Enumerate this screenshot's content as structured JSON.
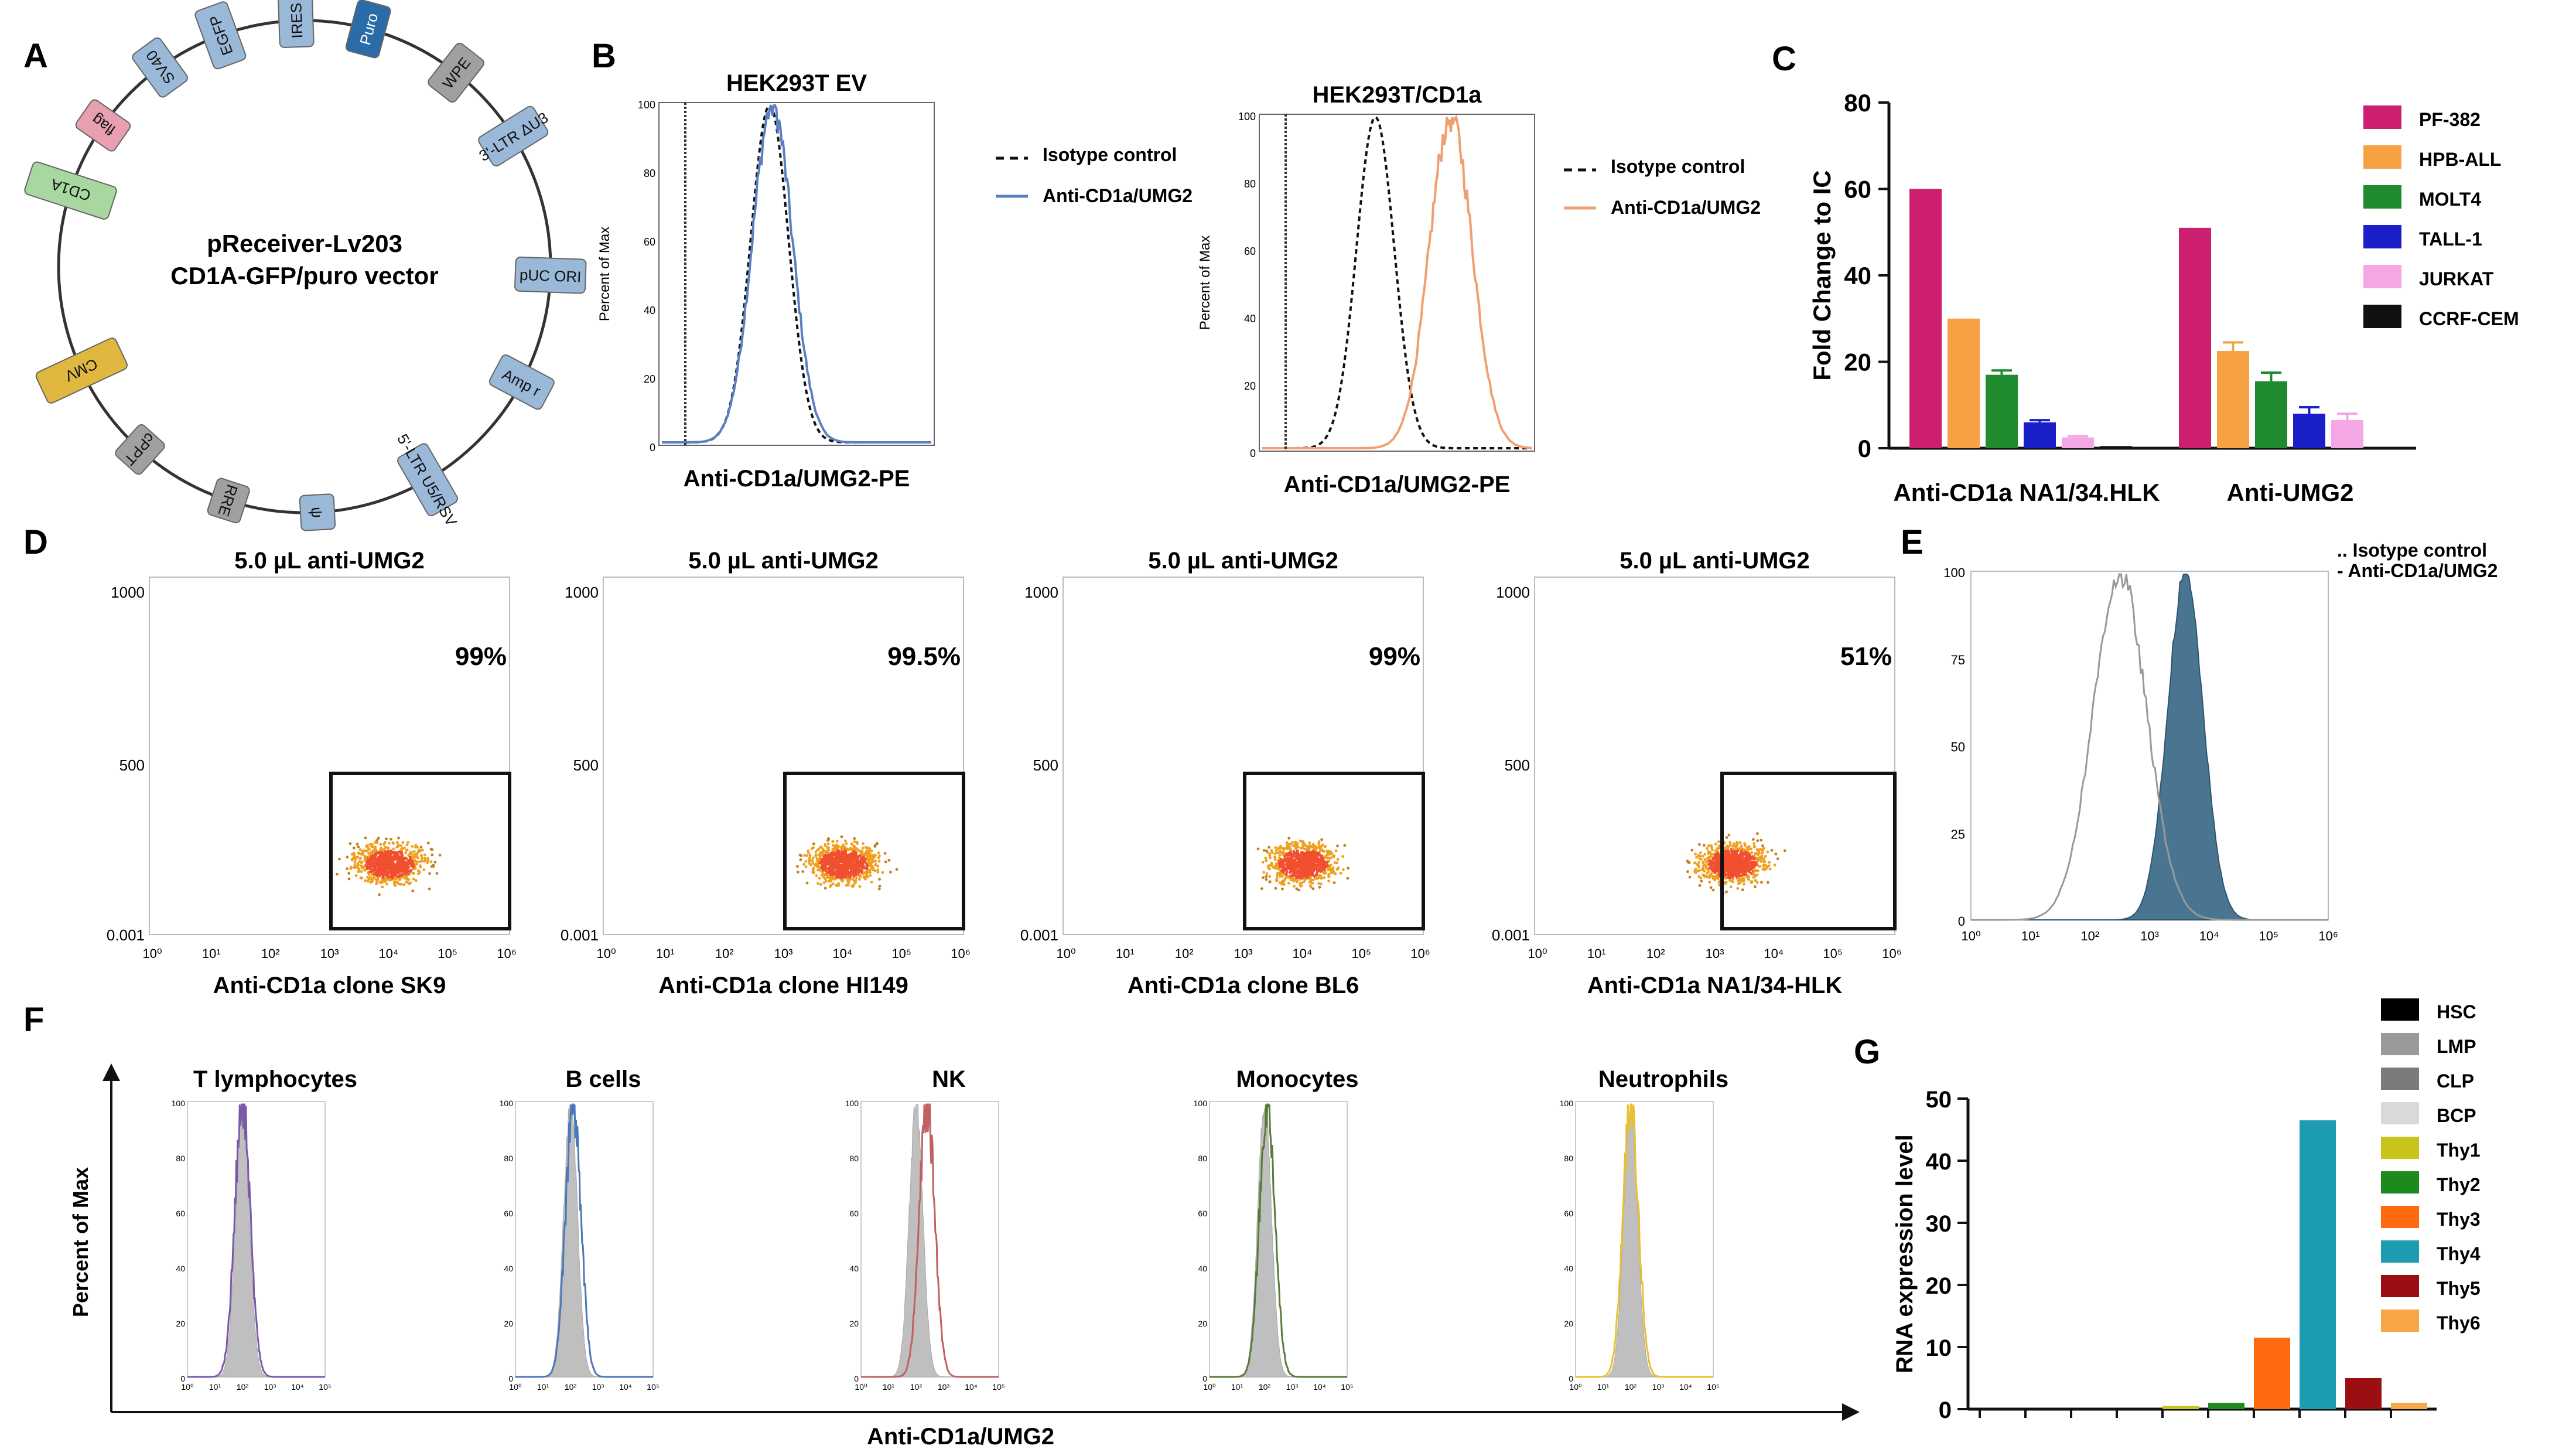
{
  "colors": {
    "black": "#000000",
    "ev_line": "#5b7fc0",
    "cd1a_line": "#f0a070",
    "gate": "#111111",
    "grey_fill": "#bfbfbf",
    "steel_fill": "#4a7590",
    "c_colors": [
      "#cc1f6f",
      "#f7a145",
      "#1f8a2e",
      "#1a1fc8",
      "#f4a7e4",
      "#111111"
    ],
    "g_colors": [
      "#000000",
      "#9a9a9a",
      "#7a7a7a",
      "#d9d9d9",
      "#c8c41a",
      "#1e8a1e",
      "#ff6a10",
      "#1e9db2",
      "#9b0e12",
      "#f7a648"
    ]
  },
  "panel_a": {
    "label": "A",
    "title_line1": "pReceiver-Lv203",
    "title_line2": "CD1A-GFP/puro vector",
    "features": [
      "CD1A",
      "flag",
      "SV40",
      "EGFP",
      "IRES",
      "Puro",
      "WPE",
      "3'-LTR ΔU3",
      "pUC ORI",
      "Amp r",
      "5'-LTR U5/RSV",
      "ψ",
      "RRE",
      "cPPT",
      "CMV"
    ]
  },
  "panel_b": {
    "label": "B",
    "ylabel": "Percent of Max",
    "plots": [
      {
        "title": "HEK293T  EV",
        "xlabel": "Anti-CD1a/UMG2-PE",
        "legend_isotype": "Isotype control",
        "legend_antibody": "Anti-CD1a/UMG2",
        "yticks": [
          "100",
          "80",
          "60",
          "40",
          "20",
          "0"
        ],
        "isotype_peak_decade": 2.0,
        "antibody_peak_decade": 2.05
      },
      {
        "title": "HEK293T/CD1a",
        "xlabel": "Anti-CD1a/UMG2-PE",
        "legend_isotype": "Isotype control",
        "legend_antibody": "Anti-CD1a/UMG2",
        "yticks": [
          "100",
          "80",
          "60",
          "40",
          "20",
          "0"
        ],
        "isotype_peak_decade": 2.1,
        "antibody_peak_decade": 3.5
      }
    ]
  },
  "chart_data": [
    {
      "id": "C",
      "type": "bar",
      "ylabel": "Fold Change to IC",
      "ylim": [
        0,
        80
      ],
      "yticks": [
        0,
        20,
        40,
        60,
        80
      ],
      "categories": [
        "Anti-CD1a NA1/34.HLK",
        "Anti-UMG2"
      ],
      "series": [
        {
          "name": "PF-382",
          "values": [
            60,
            51
          ],
          "errors": [
            0,
            0
          ]
        },
        {
          "name": "HPB-ALL",
          "values": [
            30,
            22.5
          ],
          "errors": [
            0,
            2
          ]
        },
        {
          "name": "MOLT4",
          "values": [
            17,
            15.5
          ],
          "errors": [
            1,
            2
          ]
        },
        {
          "name": "TALL-1",
          "values": [
            6,
            8
          ],
          "errors": [
            0.5,
            1.5
          ]
        },
        {
          "name": "JURKAT",
          "values": [
            2.5,
            6.5
          ],
          "errors": [
            0.3,
            1.5
          ]
        },
        {
          "name": "CCRF-CEM",
          "values": [
            0.5,
            0
          ],
          "errors": [
            0,
            0
          ]
        }
      ]
    },
    {
      "id": "D",
      "type": "scatter",
      "plots": [
        {
          "title": "5.0 µL anti-UMG2",
          "xlabel": "Anti-CD1a clone SK9",
          "percent": "99%",
          "center_decade": 4.0
        },
        {
          "title": "5.0 µL anti-UMG2",
          "xlabel": "Anti-CD1a clone HI149",
          "percent": "99.5%",
          "center_decade": 4.0
        },
        {
          "title": "5.0 µL anti-UMG2",
          "xlabel": "Anti-CD1a clone BL6",
          "percent": "99%",
          "center_decade": 4.0
        },
        {
          "title": "5.0 µL anti-UMG2",
          "xlabel": "Anti-CD1a NA1/34-HLK",
          "percent": "51%",
          "center_decade": 3.3
        }
      ],
      "yticks": [
        "1000",
        "500",
        "0.001"
      ],
      "xticks": [
        "10⁰",
        "10¹",
        "10²",
        "10³",
        "10⁴",
        "10⁵",
        "10⁶"
      ]
    },
    {
      "id": "E",
      "type": "histogram",
      "legend_isotype": ".. Isotype control",
      "legend_antibody": "- Anti-CD1a/UMG2",
      "yticks": [
        "100",
        "75",
        "50",
        "25",
        "0"
      ],
      "xticks": [
        "10⁰",
        "10¹",
        "10²",
        "10³",
        "10⁴",
        "10⁵",
        "10⁶"
      ],
      "isotype_peak_decade": 2.5,
      "antibody_peak_decade": 3.6
    },
    {
      "id": "F",
      "type": "histogram",
      "ylabel": "Percent of Max",
      "xlabel": "Anti-CD1a/UMG2",
      "plots": [
        {
          "title": "T lymphocytes",
          "line_color": "#7a5aa8",
          "peak_decade": 2.0
        },
        {
          "title": "B cells",
          "line_color": "#4a78b8",
          "peak_decade": 2.1
        },
        {
          "title": "NK",
          "line_color": "#c06060",
          "peak_decade": 2.4
        },
        {
          "title": "Monocytes",
          "line_color": "#5a7a3a",
          "peak_decade": 2.1
        },
        {
          "title": "Neutrophils",
          "line_color": "#e8c030",
          "peak_decade": 2.0
        }
      ],
      "yticks": [
        "100",
        "80",
        "60",
        "40",
        "20",
        "0"
      ],
      "xticks": [
        "10⁰",
        "10¹",
        "10²",
        "10³",
        "10⁴",
        "10⁵"
      ]
    },
    {
      "id": "G",
      "type": "bar",
      "ylabel": "RNA expression level",
      "ylim": [
        0,
        50
      ],
      "yticks": [
        0,
        10,
        20,
        30,
        40,
        50
      ],
      "categories": [
        "HSC",
        "LMP",
        "CLP",
        "BCP",
        "Thy1",
        "Thy2",
        "Thy3",
        "Thy4",
        "Thy5",
        "Thy6"
      ],
      "values": [
        0,
        0,
        0,
        0,
        0.5,
        1,
        11.5,
        46.5,
        5,
        1
      ]
    }
  ],
  "labels": {
    "C": "C",
    "D": "D",
    "E": "E",
    "F": "F",
    "G": "G"
  }
}
